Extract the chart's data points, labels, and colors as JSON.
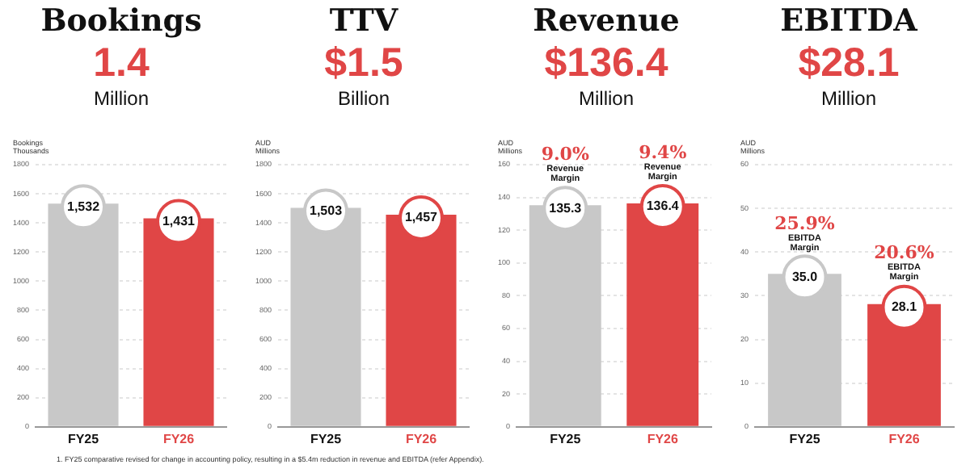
{
  "chart_data": [
    {
      "type": "bar",
      "title": "Bookings",
      "subtitle": "1.4",
      "ylabel": "Bookings Thousands",
      "categories": [
        "FY25",
        "FY26"
      ],
      "values": [
        1532,
        1431
      ],
      "value_labels": [
        "1,532",
        "1,431"
      ],
      "colors": [
        "#c8c8c8",
        "#e04646"
      ],
      "ylim": [
        0,
        1800
      ],
      "yticks": [
        0,
        200,
        400,
        600,
        800,
        1000,
        1200,
        1400,
        1600,
        1800
      ],
      "grid": "y",
      "legend": false,
      "annotations": [
        "Million",
        "1. FY25 comparative revised for change in accounting policy, resulting in a $5.4m reduction in revenue and EBITDA (refer Appendix)."
      ]
    },
    {
      "type": "bar",
      "title": "TTV",
      "subtitle": "$1.5",
      "ylabel": "AUD Millions",
      "categories": [
        "FY25",
        "FY26"
      ],
      "values": [
        1503,
        1457
      ],
      "value_labels": [
        "1,503",
        "1,457"
      ],
      "colors": [
        "#c8c8c8",
        "#e04646"
      ],
      "ylim": [
        0,
        1800
      ],
      "yticks": [
        0,
        200,
        400,
        600,
        800,
        1000,
        1200,
        1400,
        1600,
        1800
      ],
      "grid": "y",
      "legend": false,
      "annotations": [
        "Billion"
      ]
    },
    {
      "type": "bar",
      "title": "Revenue",
      "subtitle": "$136.4",
      "ylabel": "AUD Millions",
      "categories": [
        "FY25",
        "FY26"
      ],
      "values": [
        135.3,
        136.4
      ],
      "value_labels": [
        "135.3",
        "136.4"
      ],
      "colors": [
        "#c8c8c8",
        "#e04646"
      ],
      "ylim": [
        0,
        160
      ],
      "yticks": [
        0,
        20,
        40,
        60,
        80,
        100,
        120,
        140,
        160
      ],
      "grid": "y",
      "legend": false,
      "annotations": [
        "Million",
        {
          "text": "9.0%\nRevenue\nMargin",
          "x": "FY25",
          "y": 135.3
        },
        {
          "text": "9.4%\nRevenue\nMargin",
          "x": "FY26",
          "y": 136.4
        }
      ]
    },
    {
      "type": "bar",
      "title": "EBITDA",
      "subtitle": "$28.1",
      "ylabel": "AUD Millions",
      "categories": [
        "FY25",
        "FY26"
      ],
      "values": [
        35.0,
        28.1
      ],
      "value_labels": [
        "35.0",
        "28.1"
      ],
      "colors": [
        "#c8c8c8",
        "#e04646"
      ],
      "ylim": [
        0,
        60
      ],
      "yticks": [
        0,
        10,
        20,
        30,
        40,
        50,
        60
      ],
      "grid": "y",
      "legend": false,
      "annotations": [
        "Million",
        {
          "text": "25.9%\nEBITDA\nMargin",
          "x": "FY25",
          "y": 35.0
        },
        {
          "text": "20.6%\nEBITDA\nMargin",
          "x": "FY26",
          "y": 28.1
        }
      ]
    }
  ]
}
